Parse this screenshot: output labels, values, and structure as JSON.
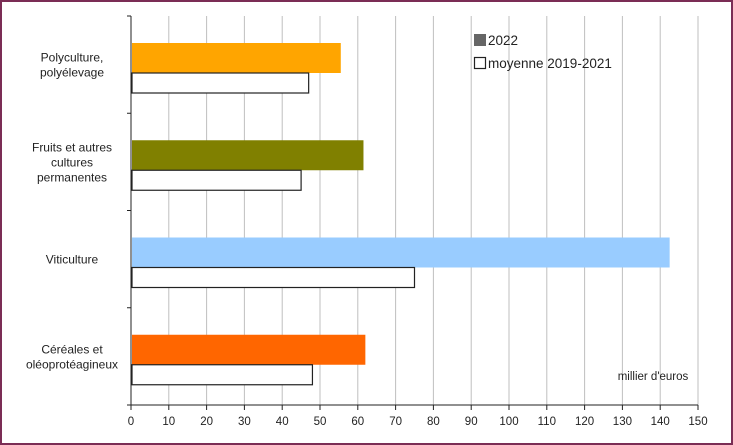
{
  "chart_data": {
    "type": "bar",
    "orientation": "horizontal",
    "categories": [
      [
        "Polyculture,",
        "polyélevage"
      ],
      [
        "Fruits et autres",
        "cultures",
        "permanentes"
      ],
      [
        "Viticulture"
      ],
      [
        "Céréales et",
        "oléoprotéagineux"
      ]
    ],
    "series": [
      {
        "name": "2022",
        "values": [
          55.5,
          61.5,
          142.5,
          62
        ],
        "colors": [
          "#ffa500",
          "#808000",
          "#99ccff",
          "#ff6600"
        ]
      },
      {
        "name": "moyenne 2019-2021",
        "values": [
          47,
          45,
          75,
          48
        ],
        "fill": "#ffffff",
        "stroke": "#222222"
      }
    ],
    "xlabel": "",
    "ylabel": "",
    "unit_label": "millier d'euros",
    "xlim": [
      0,
      150
    ],
    "xticks": [
      0,
      10,
      20,
      30,
      40,
      50,
      60,
      70,
      80,
      90,
      100,
      110,
      120,
      130,
      140,
      150
    ],
    "grid": "vertical",
    "legend_position": "top-right",
    "legend_swatch_2022": "#666666",
    "gridline_color": "#bfbfbf",
    "frame_color": "#7b2d55"
  }
}
